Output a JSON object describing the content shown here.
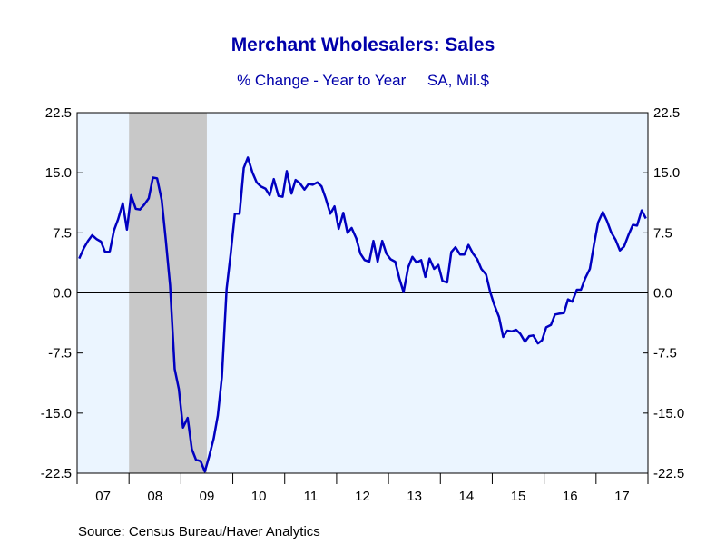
{
  "chart_data": {
    "type": "line",
    "title": "Merchant Wholesalers: Sales",
    "subtitle": "% Change - Year to Year     SA, Mil.$",
    "source": "Source:  Census Bureau/Haver Analytics",
    "ylim": [
      -22.5,
      22.5
    ],
    "yticks": [
      22.5,
      15.0,
      7.5,
      0.0,
      -7.5,
      -15.0,
      -22.5
    ],
    "ytick_labels": [
      "22.5",
      "15.0",
      "7.5",
      "0.0",
      "-7.5",
      "-15.0",
      "-22.5"
    ],
    "xlim": [
      2007.0,
      2018.0
    ],
    "xtick_labels": [
      "07",
      "08",
      "09",
      "10",
      "11",
      "12",
      "13",
      "14",
      "15",
      "16",
      "17"
    ],
    "recession_shading": {
      "start": 2008.0,
      "end": 2009.5
    },
    "grid": false,
    "colors": {
      "line": "#0000c0",
      "plot_bg": "#ebf5ff",
      "recession": "#c8c8c8",
      "text_accent": "#0000aa"
    },
    "series": [
      {
        "values": [
          [
            2007.04,
            4.3
          ],
          [
            2007.13,
            5.6
          ],
          [
            2007.21,
            6.5
          ],
          [
            2007.29,
            7.2
          ],
          [
            2007.38,
            6.7
          ],
          [
            2007.46,
            6.4
          ],
          [
            2007.54,
            5.1
          ],
          [
            2007.63,
            5.2
          ],
          [
            2007.71,
            7.8
          ],
          [
            2007.79,
            9.2
          ],
          [
            2007.88,
            11.2
          ],
          [
            2007.96,
            7.9
          ],
          [
            2008.04,
            12.2
          ],
          [
            2008.13,
            10.5
          ],
          [
            2008.21,
            10.4
          ],
          [
            2008.29,
            11.0
          ],
          [
            2008.38,
            11.8
          ],
          [
            2008.46,
            14.4
          ],
          [
            2008.54,
            14.3
          ],
          [
            2008.63,
            11.6
          ],
          [
            2008.71,
            6.5
          ],
          [
            2008.79,
            1.0
          ],
          [
            2008.88,
            -9.5
          ],
          [
            2008.96,
            -12.0
          ],
          [
            2009.04,
            -16.8
          ],
          [
            2009.13,
            -15.6
          ],
          [
            2009.21,
            -19.5
          ],
          [
            2009.29,
            -20.8
          ],
          [
            2009.38,
            -21.0
          ],
          [
            2009.46,
            -22.3
          ],
          [
            2009.54,
            -20.5
          ],
          [
            2009.63,
            -18.2
          ],
          [
            2009.71,
            -15.3
          ],
          [
            2009.79,
            -10.5
          ],
          [
            2009.88,
            0.5
          ],
          [
            2009.96,
            5.0
          ],
          [
            2010.04,
            9.9
          ],
          [
            2010.13,
            9.9
          ],
          [
            2010.21,
            15.6
          ],
          [
            2010.29,
            16.9
          ],
          [
            2010.38,
            15.0
          ],
          [
            2010.46,
            13.8
          ],
          [
            2010.54,
            13.3
          ],
          [
            2010.63,
            13.0
          ],
          [
            2010.71,
            12.2
          ],
          [
            2010.79,
            14.2
          ],
          [
            2010.88,
            12.1
          ],
          [
            2010.96,
            12.0
          ],
          [
            2011.04,
            15.2
          ],
          [
            2011.13,
            12.4
          ],
          [
            2011.21,
            14.1
          ],
          [
            2011.29,
            13.7
          ],
          [
            2011.38,
            12.9
          ],
          [
            2011.46,
            13.6
          ],
          [
            2011.54,
            13.5
          ],
          [
            2011.63,
            13.8
          ],
          [
            2011.71,
            13.3
          ],
          [
            2011.79,
            11.8
          ],
          [
            2011.88,
            9.9
          ],
          [
            2011.96,
            10.8
          ],
          [
            2012.04,
            8.0
          ],
          [
            2012.13,
            10.0
          ],
          [
            2012.21,
            7.5
          ],
          [
            2012.29,
            8.1
          ],
          [
            2012.38,
            6.8
          ],
          [
            2012.46,
            4.9
          ],
          [
            2012.54,
            4.1
          ],
          [
            2012.63,
            3.9
          ],
          [
            2012.71,
            6.5
          ],
          [
            2012.79,
            3.9
          ],
          [
            2012.88,
            6.5
          ],
          [
            2012.96,
            4.9
          ],
          [
            2013.04,
            4.2
          ],
          [
            2013.13,
            3.9
          ],
          [
            2013.21,
            1.8
          ],
          [
            2013.29,
            0.1
          ],
          [
            2013.38,
            3.2
          ],
          [
            2013.46,
            4.5
          ],
          [
            2013.54,
            3.8
          ],
          [
            2013.63,
            4.1
          ],
          [
            2013.71,
            2.0
          ],
          [
            2013.79,
            4.3
          ],
          [
            2013.88,
            3.0
          ],
          [
            2013.96,
            3.5
          ],
          [
            2014.04,
            1.5
          ],
          [
            2014.13,
            1.3
          ],
          [
            2014.21,
            5.1
          ],
          [
            2014.29,
            5.7
          ],
          [
            2014.38,
            4.8
          ],
          [
            2014.46,
            4.8
          ],
          [
            2014.54,
            6.0
          ],
          [
            2014.63,
            4.9
          ],
          [
            2014.71,
            4.2
          ],
          [
            2014.79,
            3.0
          ],
          [
            2014.88,
            2.3
          ],
          [
            2014.96,
            0.1
          ],
          [
            2015.04,
            -1.5
          ],
          [
            2015.13,
            -3.0
          ],
          [
            2015.21,
            -5.5
          ],
          [
            2015.29,
            -4.7
          ],
          [
            2015.38,
            -4.8
          ],
          [
            2015.46,
            -4.6
          ],
          [
            2015.54,
            -5.1
          ],
          [
            2015.63,
            -6.1
          ],
          [
            2015.71,
            -5.4
          ],
          [
            2015.79,
            -5.3
          ],
          [
            2015.88,
            -6.3
          ],
          [
            2015.96,
            -5.9
          ],
          [
            2016.04,
            -4.3
          ],
          [
            2016.13,
            -4.0
          ],
          [
            2016.21,
            -2.7
          ],
          [
            2016.29,
            -2.6
          ],
          [
            2016.38,
            -2.5
          ],
          [
            2016.46,
            -0.8
          ],
          [
            2016.54,
            -1.1
          ],
          [
            2016.63,
            0.4
          ],
          [
            2016.71,
            0.4
          ],
          [
            2016.79,
            1.8
          ],
          [
            2016.88,
            3.0
          ],
          [
            2016.96,
            6.0
          ],
          [
            2017.04,
            8.8
          ],
          [
            2017.13,
            10.1
          ],
          [
            2017.21,
            9.0
          ],
          [
            2017.29,
            7.6
          ],
          [
            2017.38,
            6.6
          ],
          [
            2017.46,
            5.3
          ],
          [
            2017.54,
            5.8
          ],
          [
            2017.63,
            7.3
          ],
          [
            2017.71,
            8.5
          ],
          [
            2017.79,
            8.4
          ],
          [
            2017.88,
            10.3
          ],
          [
            2017.96,
            9.3
          ]
        ]
      }
    ]
  }
}
